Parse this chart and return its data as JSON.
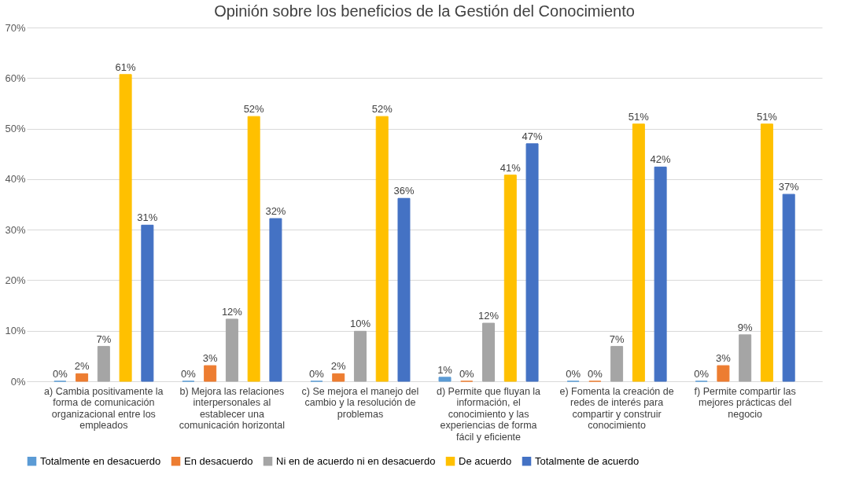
{
  "chart_data": {
    "type": "bar",
    "title": "Opinión sobre los beneficios de la Gestión del Conocimiento",
    "categories": [
      "a) Cambia positivamente la forma de comunicación organizacional entre los empleados",
      "b) Mejora las relaciones interpersonales al establecer una comunicación horizontal",
      "c) Se mejora el manejo del cambio y la resolución de problemas",
      "d) Permite que fluyan la información, el conocimiento y las experiencias de forma fácil y eficiente",
      "e) Fomenta la creación de redes de interés para compartir y construir conocimiento",
      "f) Permite compartir las mejores prácticas del negocio"
    ],
    "series": [
      {
        "name": "Totalmente en desacuerdo",
        "color": "#5b9bd5",
        "values": [
          0,
          0,
          0,
          0.8,
          0,
          0
        ],
        "value_labels": [
          "0%",
          "0%",
          "0%",
          "1%",
          "0%",
          "0%"
        ]
      },
      {
        "name": "En desacuerdo",
        "color": "#ed7d31",
        "values": [
          1.5,
          3.1,
          1.5,
          0,
          0,
          3.1
        ],
        "value_labels": [
          "2%",
          "3%",
          "2%",
          "0%",
          "0%",
          "3%"
        ]
      },
      {
        "name": "Ni en de acuerdo ni en desacuerdo",
        "color": "#a5a5a5",
        "values": [
          6.9,
          12.3,
          9.9,
          11.5,
          6.9,
          9.2
        ],
        "value_labels": [
          "7%",
          "12%",
          "10%",
          "12%",
          "7%",
          "9%"
        ]
      },
      {
        "name": "De acuerdo",
        "color": "#ffc000",
        "values": [
          60.7,
          52.4,
          52.4,
          40.8,
          50.9,
          50.9
        ],
        "value_labels": [
          "61%",
          "52%",
          "52%",
          "41%",
          "51%",
          "51%"
        ]
      },
      {
        "name": "Totalmente de acuerdo",
        "color": "#4472c4",
        "values": [
          30.9,
          32.2,
          36.2,
          47.0,
          42.4,
          37.0
        ],
        "value_labels": [
          "31%",
          "32%",
          "36%",
          "47%",
          "42%",
          "37%"
        ]
      }
    ],
    "ylim": [
      0,
      70
    ],
    "yticks": [
      {
        "value": 0,
        "label": "0%"
      },
      {
        "value": 10,
        "label": "10%"
      },
      {
        "value": 20,
        "label": "20%"
      },
      {
        "value": 30,
        "label": "30%"
      },
      {
        "value": 40,
        "label": "40%"
      },
      {
        "value": 50,
        "label": "50%"
      },
      {
        "value": 60,
        "label": "60%"
      },
      {
        "value": 70,
        "label": "70%"
      }
    ],
    "grid": "y",
    "legend": "bottom"
  }
}
